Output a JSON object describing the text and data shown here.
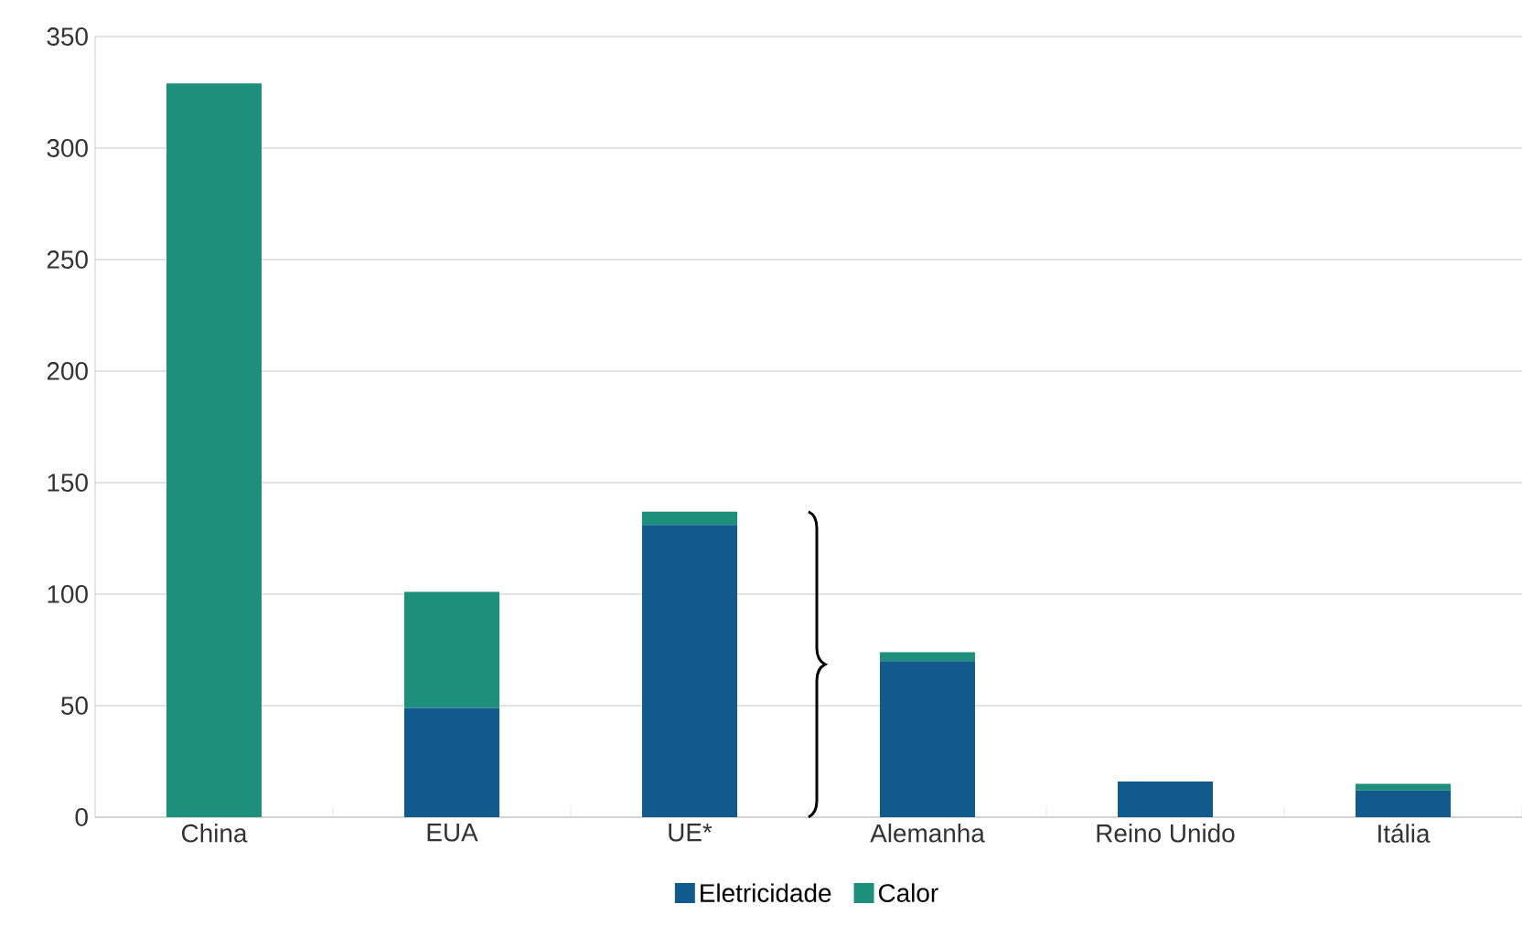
{
  "chart_data": {
    "type": "bar",
    "stacked": true,
    "categories": [
      "China",
      "EUA",
      "UE*",
      "Alemanha",
      "Reino Unido",
      "Itália"
    ],
    "series": [
      {
        "name": "Eletricidade",
        "color": "#105b8c",
        "values": [
          0,
          49,
          131,
          70,
          16,
          12
        ]
      },
      {
        "name": "Calor",
        "color": "#1c907b",
        "values": [
          329,
          52,
          6,
          4,
          0,
          3
        ]
      }
    ],
    "ylim": [
      0,
      350
    ],
    "yticks": [
      0,
      50,
      100,
      150,
      200,
      250,
      300,
      350
    ],
    "grid": "y",
    "legend": "bottom"
  }
}
